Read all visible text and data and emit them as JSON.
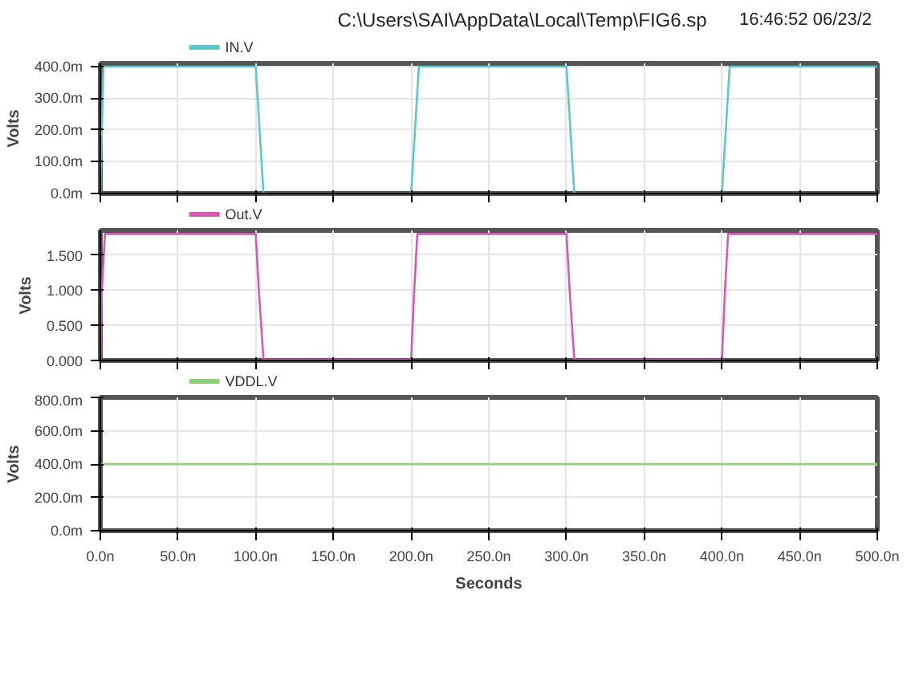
{
  "chart_data": [
    {
      "type": "line",
      "title": "C:\\Users\\SAI\\AppData\\Local\\Temp\\FIG6.sp",
      "annotations": [
        "16:46:52 06/23/2"
      ],
      "ylabel": "Volts",
      "legend": "top left",
      "grid": true,
      "tick_labels": "y",
      "line_style": "solid",
      "xlim": [
        0,
        500
      ],
      "xticks": [
        {
          "value": 0,
          "label": null
        },
        {
          "value": 50,
          "label": null
        },
        {
          "value": 100,
          "label": null
        },
        {
          "value": 150,
          "label": null
        },
        {
          "value": 200,
          "label": null
        },
        {
          "value": 250,
          "label": null
        },
        {
          "value": 300,
          "label": null
        },
        {
          "value": 350,
          "label": null
        },
        {
          "value": 400,
          "label": null
        },
        {
          "value": 450,
          "label": null
        },
        {
          "value": 500,
          "label": null
        }
      ],
      "ylim": [
        0,
        410
      ],
      "yticks": [
        {
          "value": 0,
          "label": "0.0m"
        },
        {
          "value": 100,
          "label": "100.0m"
        },
        {
          "value": 200,
          "label": "200.0m"
        },
        {
          "value": 300,
          "label": "300.0m"
        },
        {
          "value": 400,
          "label": "400.0m"
        }
      ],
      "series": [
        {
          "name": "IN.V",
          "color": "#5cc8c8",
          "x": [
            0,
            2,
            100,
            105,
            200,
            205,
            300,
            305,
            400,
            405,
            500
          ],
          "values": [
            0,
            400,
            400,
            0,
            0,
            400,
            400,
            0,
            0,
            400,
            400
          ]
        }
      ]
    },
    {
      "type": "line",
      "ylabel": "Volts",
      "legend": "top left",
      "grid": true,
      "tick_labels": "y",
      "line_style": "solid",
      "xlim": [
        0,
        500
      ],
      "xticks": [
        {
          "value": 0,
          "label": null
        },
        {
          "value": 50,
          "label": null
        },
        {
          "value": 100,
          "label": null
        },
        {
          "value": 150,
          "label": null
        },
        {
          "value": 200,
          "label": null
        },
        {
          "value": 250,
          "label": null
        },
        {
          "value": 300,
          "label": null
        },
        {
          "value": 350,
          "label": null
        },
        {
          "value": 400,
          "label": null
        },
        {
          "value": 450,
          "label": null
        },
        {
          "value": 500,
          "label": null
        }
      ],
      "ylim": [
        0,
        1.85
      ],
      "yticks": [
        {
          "value": 0,
          "label": "0.000"
        },
        {
          "value": 0.5,
          "label": "0.500"
        },
        {
          "value": 1.0,
          "label": "1.000"
        },
        {
          "value": 1.5,
          "label": "1.500"
        }
      ],
      "series": [
        {
          "name": "Out.V",
          "color": "#d45ab4",
          "x": [
            0,
            1,
            3,
            100,
            102,
            105,
            200,
            202,
            204,
            300,
            302,
            305,
            400,
            402,
            404,
            500
          ],
          "values": [
            0,
            1.0,
            1.8,
            1.8,
            1.0,
            0.01,
            0.01,
            1.0,
            1.8,
            1.8,
            1.0,
            0.01,
            0.01,
            1.0,
            1.8,
            1.8
          ]
        }
      ]
    },
    {
      "type": "line",
      "ylabel": "Volts",
      "xlabel": "Seconds",
      "legend": "top left",
      "grid": true,
      "line_style": "solid",
      "xlim": [
        0,
        500
      ],
      "xticks": [
        {
          "value": 0,
          "label": "0.0n"
        },
        {
          "value": 50,
          "label": "50.0n"
        },
        {
          "value": 100,
          "label": "100.0n"
        },
        {
          "value": 150,
          "label": "150.0n"
        },
        {
          "value": 200,
          "label": "200.0n"
        },
        {
          "value": 250,
          "label": "250.0n"
        },
        {
          "value": 300,
          "label": "300.0n"
        },
        {
          "value": 350,
          "label": "350.0n"
        },
        {
          "value": 400,
          "label": "400.0n"
        },
        {
          "value": 450,
          "label": "450.0n"
        },
        {
          "value": 500,
          "label": "500.0n"
        }
      ],
      "ylim": [
        0,
        800
      ],
      "yticks": [
        {
          "value": 0,
          "label": "0.0m"
        },
        {
          "value": 200,
          "label": "200.0m"
        },
        {
          "value": 400,
          "label": "400.0m"
        },
        {
          "value": 600,
          "label": "600.0m"
        },
        {
          "value": 800,
          "label": "800.0m"
        }
      ],
      "series": [
        {
          "name": "VDDL.V",
          "color": "#8fd17a",
          "x": [
            0,
            500
          ],
          "values": [
            400,
            400
          ]
        }
      ]
    }
  ]
}
